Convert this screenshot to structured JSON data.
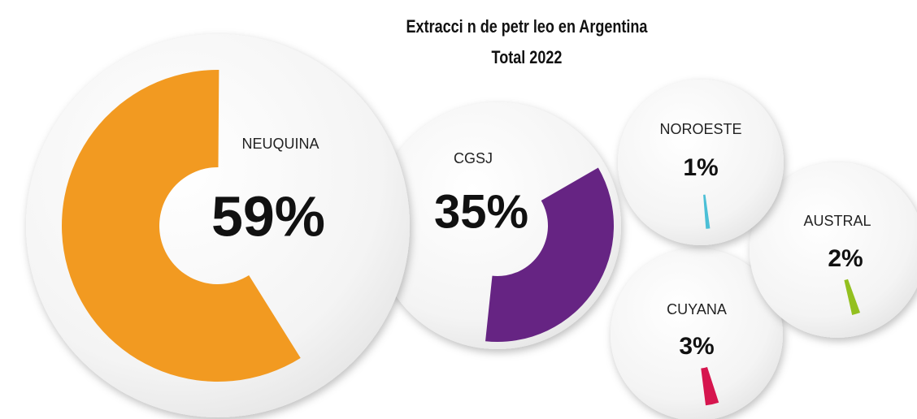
{
  "chart_data": {
    "type": "bubble-donut",
    "title": "Extracci n de petr leo en Argentina",
    "subtitle": "Total 2022",
    "categories": [
      "NEUQUINA",
      "CGSJ",
      "NOROESTE",
      "AUSTRAL",
      "CUYANA"
    ],
    "values": [
      59,
      35,
      1,
      2,
      3
    ],
    "value_labels": [
      "59%",
      "35%",
      "1%",
      "2%",
      "3%"
    ],
    "colors": [
      "#f29a21",
      "#662483",
      "#4bbfd6",
      "#93c01f",
      "#d6154e"
    ]
  }
}
